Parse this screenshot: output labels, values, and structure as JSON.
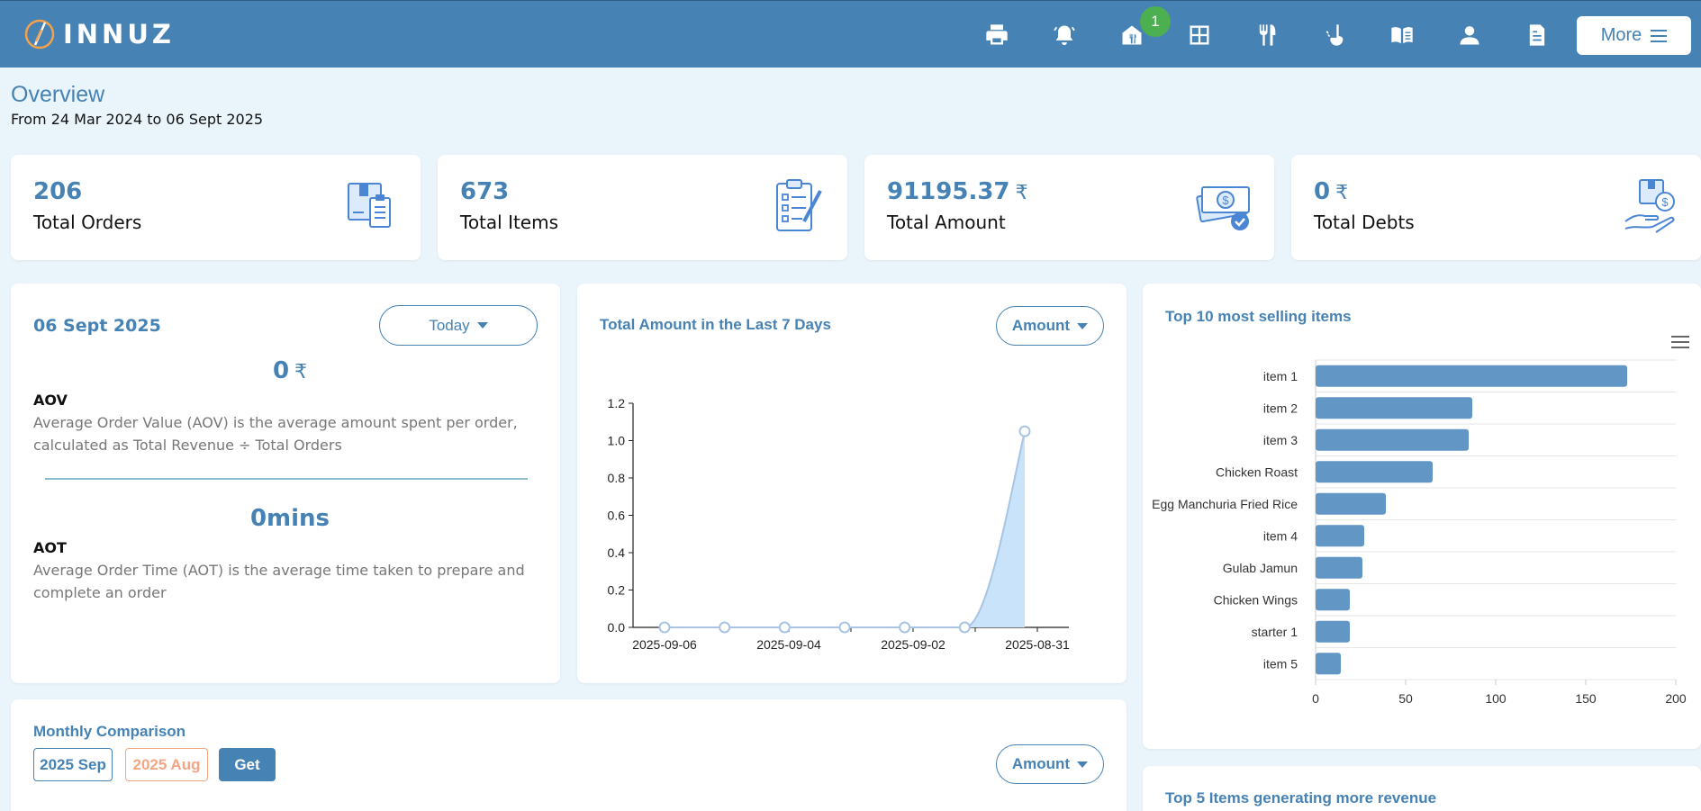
{
  "app": {
    "logo_text": "INNUZ",
    "notification_count": "1",
    "more_label": "More"
  },
  "nav_icons": [
    "printer-icon",
    "bell-icon",
    "store-icon",
    "table-grid-icon",
    "fork-knife-icon",
    "ladle-icon",
    "menu-book-icon",
    "user-icon",
    "invoice-icon"
  ],
  "overview": {
    "title": "Overview",
    "range": "From 24 Mar 2024 to 06 Sept 2025"
  },
  "stats": [
    {
      "value": "206",
      "currency": "",
      "label": "Total Orders",
      "icon": "orders-icon"
    },
    {
      "value": "673",
      "currency": "",
      "label": "Total Items",
      "icon": "clipboard-checklist-icon"
    },
    {
      "value": "91195.37",
      "currency": "₹",
      "label": "Total Amount",
      "icon": "cash-icon"
    },
    {
      "value": "0",
      "currency": "₹",
      "label": "Total Debts",
      "icon": "debt-hand-icon"
    }
  ],
  "daily": {
    "date": "06 Sept 2025",
    "filter": "Today",
    "aov_value": "0",
    "aov_currency": "₹",
    "aov_name": "AOV",
    "aov_desc": "Average Order Value (AOV) is the average amount spent per order, calculated as Total Revenue ÷ Total Orders",
    "aot_value": "0",
    "aot_unit": "mins",
    "aot_name": "AOT",
    "aot_desc": "Average Order Time (AOT) is the average time taken to prepare and complete an order"
  },
  "last7": {
    "title": "Total Amount in the Last 7 Days",
    "filter": "Amount"
  },
  "top_selling": {
    "title": "Top 10 most selling items"
  },
  "monthly": {
    "title": "Monthly Comparison",
    "month_a": "2025 Sep",
    "month_b": "2025 Aug",
    "get_label": "Get",
    "filter": "Amount"
  },
  "top_revenue": {
    "title": "Top 5 Items generating more revenue"
  },
  "colors": {
    "primary": "#4682b4",
    "bar": "#6196c5",
    "area": "#c9e3fb",
    "line": "#a9c4e4",
    "badge": "#4caf50",
    "month_b": "#f4a683"
  },
  "chart_data": [
    {
      "type": "area",
      "title": "Total Amount in the Last 7 Days",
      "x": [
        "2025-09-06",
        "2025-09-05",
        "2025-09-04",
        "2025-09-03",
        "2025-09-02",
        "2025-09-01",
        "2025-08-31"
      ],
      "y": [
        0,
        0,
        0,
        0,
        0,
        0,
        1.05
      ],
      "x_tick_labels": [
        "2025-09-06",
        "2025-09-04",
        "2025-09-02",
        "2025-08-31"
      ],
      "y_ticks": [
        "0.0",
        "0.2",
        "0.4",
        "0.6",
        "0.8",
        "1.0",
        "1.2"
      ],
      "ylim": [
        0,
        1.2
      ],
      "grid": false
    },
    {
      "type": "bar",
      "orientation": "horizontal",
      "title": "Top 10 most selling items",
      "categories": [
        "item 1",
        "item 2",
        "item 3",
        "Chicken Roast",
        "Egg Manchuria Fried Rice",
        "item 4",
        "Gulab Jamun",
        "Chicken Wings",
        "starter 1",
        "item 5"
      ],
      "values": [
        173,
        87,
        85,
        65,
        39,
        27,
        26,
        19,
        19,
        14
      ],
      "x_ticks": [
        "0",
        "50",
        "100",
        "150",
        "200"
      ],
      "xlim": [
        0,
        200
      ],
      "grid": true
    }
  ]
}
